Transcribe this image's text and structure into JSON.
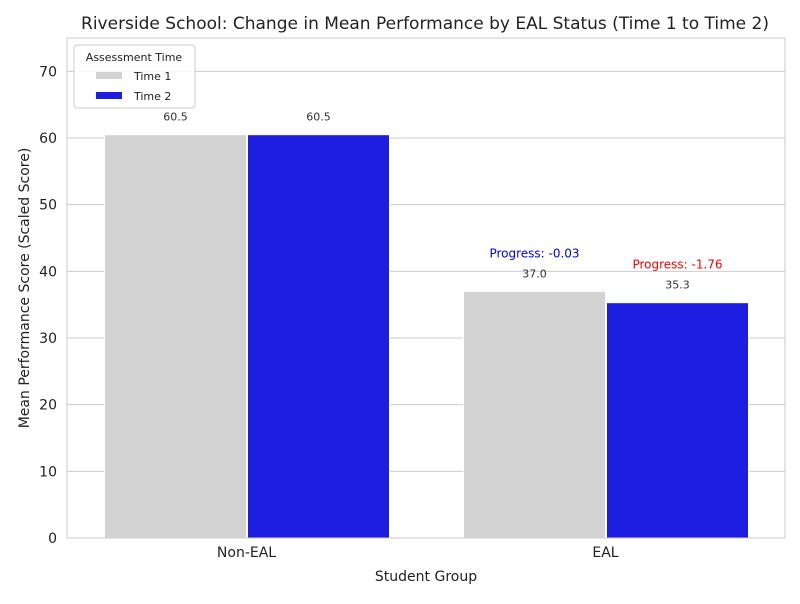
{
  "chart_data": {
    "type": "bar",
    "title": "Riverside School: Change in Mean Performance by EAL Status (Time 1 to Time 2)",
    "xlabel": "Student Group",
    "ylabel": "Mean Performance Score (Scaled Score)",
    "ylim": [
      0,
      75
    ],
    "yticks": [
      0,
      10,
      20,
      30,
      40,
      50,
      60,
      70
    ],
    "grid": true,
    "categories": [
      "Non-EAL",
      "EAL"
    ],
    "series": [
      {
        "name": "Time 1",
        "color": "#d3d3d3",
        "values": [
          60.5,
          37.0
        ],
        "labels": [
          "60.5",
          "37.0"
        ]
      },
      {
        "name": "Time 2",
        "color": "#1e1ee3",
        "values": [
          60.5,
          35.3
        ],
        "labels": [
          "60.5",
          "35.3"
        ]
      }
    ],
    "legend": {
      "title": "Assessment Time",
      "placement": "top-left"
    },
    "annotations": [
      {
        "text": "Progress: -0.03",
        "category": "EAL",
        "series": "Time 1",
        "color": "#0000ff"
      },
      {
        "text": "Progress: -1.76",
        "category": "EAL",
        "series": "Time 2",
        "color": "#ff0000"
      }
    ]
  }
}
